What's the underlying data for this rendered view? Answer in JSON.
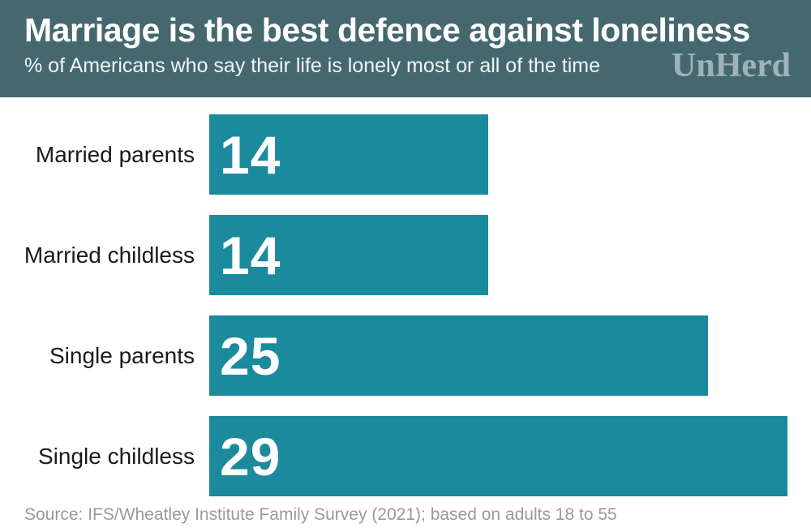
{
  "header": {
    "title": "Marriage is the best defence against loneliness",
    "subtitle": "% of Americans who say their life is lonely most or all of the time",
    "logo": "UnHerd"
  },
  "chart_data": {
    "type": "bar",
    "orientation": "horizontal",
    "title": "Marriage is the best defence against loneliness",
    "subtitle": "% of Americans who say their life is lonely most or all of the time",
    "categories": [
      "Married parents",
      "Married childless",
      "Single parents",
      "Single childless"
    ],
    "values": [
      14,
      14,
      25,
      29
    ],
    "unit": "percent",
    "xlabel": "",
    "ylabel": "",
    "xlim": [
      0,
      30
    ],
    "grid": false,
    "legend": false,
    "value_labels_inside_bars": true
  },
  "footer": {
    "source": "Source: IFS/Wheatley Institute Family Survey (2021); based on adults 18 to 55"
  },
  "colors": {
    "header_bg": "#45686f",
    "bar": "#1b8a9c",
    "title_text": "#ffffff",
    "subtitle_text": "#f2f6f7",
    "logo_text": "#9fb3b7",
    "category_label": "#1a1a1a",
    "value_label": "#ffffff",
    "source_text": "#9a9a9a",
    "background": "#ffffff"
  }
}
